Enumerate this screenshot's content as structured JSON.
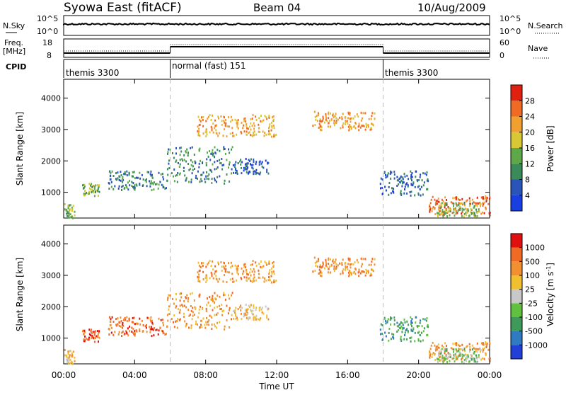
{
  "header": {
    "station": "Syowa East (fitACF)",
    "beam": "Beam 04",
    "date": "10/Aug/2009"
  },
  "top_panels": {
    "nsky_label": "N.Sky",
    "nsearch_label": "N.Search",
    "nsky_ticks": [
      "10^5",
      "10^0"
    ],
    "nsearch_ticks": [
      "10^5",
      "10^0"
    ],
    "freq_label_1": "Freq.",
    "freq_label_2": "[MHz]",
    "freq_ticks": [
      "18",
      "8"
    ],
    "nave_label": "Nave",
    "nave_ticks": [
      "60",
      "0"
    ],
    "cpid_label": "CPID",
    "cpid_segments": [
      {
        "label": "themis 3300",
        "start_hour": 0,
        "end_hour": 6
      },
      {
        "label": "normal (fast) 151",
        "start_hour": 6,
        "end_hour": 18
      },
      {
        "label": "themis 3300",
        "start_hour": 18,
        "end_hour": 24
      }
    ]
  },
  "chart_data": [
    {
      "type": "scatter",
      "name": "power",
      "ylabel": "Slant Range [km]",
      "ylim": [
        180,
        4600
      ],
      "yticks": [
        1000,
        2000,
        3000,
        4000
      ],
      "xlim": [
        0,
        24
      ],
      "colorbar": {
        "label": "Power [dB]",
        "ticks": [
          "4",
          "8",
          "12",
          "16",
          "20",
          "24",
          "28"
        ],
        "colors": [
          "#1a3fe0",
          "#2a54b8",
          "#3a8a5a",
          "#5fa84a",
          "#d8c834",
          "#f0a030",
          "#ef6a25",
          "#e02010"
        ]
      },
      "clusters": [
        {
          "x_hours": [
            0.0,
            0.6
          ],
          "range_km": [
            200,
            700
          ],
          "level": 3
        },
        {
          "x_hours": [
            1.0,
            2.0
          ],
          "range_km": [
            900,
            1300
          ],
          "level": 3
        },
        {
          "x_hours": [
            2.5,
            5.8
          ],
          "range_km": [
            1100,
            1700
          ],
          "level": 2
        },
        {
          "x_hours": [
            5.8,
            9.5
          ],
          "range_km": [
            1300,
            2500
          ],
          "level": 2
        },
        {
          "x_hours": [
            9.5,
            11.5
          ],
          "range_km": [
            1600,
            2100
          ],
          "level": 1
        },
        {
          "x_hours": [
            7.5,
            12.0
          ],
          "range_km": [
            2800,
            3500
          ],
          "level": 5
        },
        {
          "x_hours": [
            14.0,
            17.5
          ],
          "range_km": [
            3000,
            3600
          ],
          "level": 5
        },
        {
          "x_hours": [
            17.8,
            20.5
          ],
          "range_km": [
            900,
            1700
          ],
          "level": 1
        },
        {
          "x_hours": [
            20.5,
            24.0
          ],
          "range_km": [
            300,
            900
          ],
          "level": 6
        },
        {
          "x_hours": [
            21.0,
            23.5
          ],
          "range_km": [
            250,
            700
          ],
          "level": 3
        }
      ]
    },
    {
      "type": "scatter",
      "name": "velocity",
      "ylabel": "Slant Range [km]",
      "xlabel": "Time UT",
      "ylim": [
        180,
        4600
      ],
      "yticks": [
        1000,
        2000,
        3000,
        4000
      ],
      "xlim": [
        0,
        24
      ],
      "xticks": [
        "00:00",
        "04:00",
        "08:00",
        "12:00",
        "16:00",
        "20:00",
        "00:00"
      ],
      "colorbar": {
        "label": "Velocity [m s^-1]",
        "ticks": [
          "1000",
          "500",
          "100",
          "25",
          "-25",
          "-100",
          "-500",
          "-1000"
        ],
        "colors": [
          "#2240d8",
          "#2f7ac0",
          "#3f9a5a",
          "#62c040",
          "#c8c8c8",
          "#f0c030",
          "#f09030",
          "#ef6a25",
          "#e01010"
        ]
      },
      "clusters": [
        {
          "x_hours": [
            0.0,
            0.6
          ],
          "range_km": [
            200,
            700
          ],
          "level": 5
        },
        {
          "x_hours": [
            1.0,
            2.0
          ],
          "range_km": [
            900,
            1300
          ],
          "level": 7
        },
        {
          "x_hours": [
            2.5,
            5.8
          ],
          "range_km": [
            1100,
            1700
          ],
          "level": 7
        },
        {
          "x_hours": [
            5.8,
            9.5
          ],
          "range_km": [
            1300,
            2500
          ],
          "level": 6
        },
        {
          "x_hours": [
            9.5,
            11.5
          ],
          "range_km": [
            1600,
            2100
          ],
          "level": 5
        },
        {
          "x_hours": [
            7.5,
            12.0
          ],
          "range_km": [
            2800,
            3500
          ],
          "level": 6
        },
        {
          "x_hours": [
            14.0,
            17.5
          ],
          "range_km": [
            3000,
            3600
          ],
          "level": 6
        },
        {
          "x_hours": [
            17.8,
            20.5
          ],
          "range_km": [
            900,
            1700
          ],
          "level": 2
        },
        {
          "x_hours": [
            20.5,
            24.0
          ],
          "range_km": [
            300,
            900
          ],
          "level": 6
        },
        {
          "x_hours": [
            21.0,
            23.5
          ],
          "range_km": [
            250,
            700
          ],
          "level": 3
        }
      ]
    }
  ]
}
